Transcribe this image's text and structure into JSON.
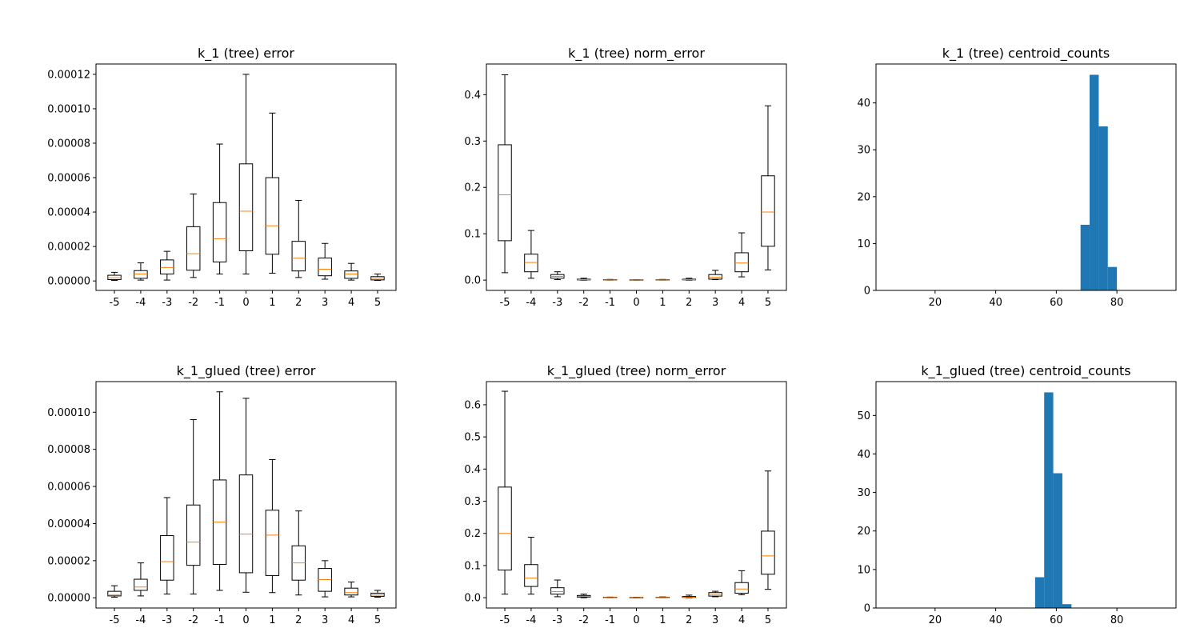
{
  "chart_data": [
    {
      "type": "box",
      "title": "k_1 (tree) error",
      "xlabel": "",
      "ylabel": "",
      "categories": [
        "-5",
        "-4",
        "-3",
        "-2",
        "-1",
        "0",
        "1",
        "2",
        "3",
        "4",
        "5"
      ],
      "ylim": [
        -5.5e-06,
        0.000126
      ],
      "yticks": [
        0,
        2e-05,
        4e-05,
        6e-05,
        8e-05,
        0.0001,
        0.00012
      ],
      "ytick_labels": [
        "0.00000",
        "0.00002",
        "0.00004",
        "0.00006",
        "0.00008",
        "0.00010",
        "0.00012"
      ],
      "boxes": [
        {
          "whislo": 3e-07,
          "q1": 8e-07,
          "med": 1.8e-06,
          "q3": 3.3e-06,
          "whishi": 5e-06
        },
        {
          "whislo": 5e-07,
          "q1": 1.5e-06,
          "med": 4e-06,
          "q3": 6e-06,
          "whishi": 1.05e-05
        },
        {
          "whislo": 5e-07,
          "q1": 4e-06,
          "med": 7.8e-06,
          "q3": 1.22e-05,
          "whishi": 1.72e-05
        },
        {
          "whislo": 2e-06,
          "q1": 6.2e-06,
          "med": 1.58e-05,
          "q3": 3.15e-05,
          "whishi": 5.05e-05
        },
        {
          "whislo": 4e-06,
          "q1": 1.1e-05,
          "med": 2.45e-05,
          "q3": 4.55e-05,
          "whishi": 7.95e-05
        },
        {
          "whislo": 4e-06,
          "q1": 1.75e-05,
          "med": 4.05e-05,
          "q3": 6.8e-05,
          "whishi": 0.00012
        },
        {
          "whislo": 4.5e-06,
          "q1": 1.55e-05,
          "med": 3.2e-05,
          "q3": 6e-05,
          "whishi": 9.75e-05
        },
        {
          "whislo": 2e-06,
          "q1": 5.8e-06,
          "med": 1.32e-05,
          "q3": 2.3e-05,
          "whishi": 4.68e-05
        },
        {
          "whislo": 1e-06,
          "q1": 3e-06,
          "med": 6.8e-06,
          "q3": 1.33e-05,
          "whishi": 2.18e-05
        },
        {
          "whislo": 5e-07,
          "q1": 1.5e-06,
          "med": 4e-06,
          "q3": 5.8e-06,
          "whishi": 1.02e-05
        },
        {
          "whislo": 3e-07,
          "q1": 6e-07,
          "med": 1.5e-06,
          "q3": 2.5e-06,
          "whishi": 4e-06
        }
      ]
    },
    {
      "type": "box",
      "title": "k_1 (tree) norm_error",
      "xlabel": "",
      "ylabel": "",
      "categories": [
        "-5",
        "-4",
        "-3",
        "-2",
        "-1",
        "0",
        "1",
        "2",
        "3",
        "4",
        "5"
      ],
      "ylim": [
        -0.0222,
        0.4662
      ],
      "yticks": [
        0,
        0.1,
        0.2,
        0.3,
        0.4
      ],
      "ytick_labels": [
        "0.0",
        "0.1",
        "0.2",
        "0.3",
        "0.4"
      ],
      "boxes": [
        {
          "whislo": 0.016,
          "q1": 0.085,
          "med": 0.184,
          "q3": 0.292,
          "whishi": 0.443
        },
        {
          "whislo": 0.004,
          "q1": 0.018,
          "med": 0.038,
          "q3": 0.056,
          "whishi": 0.107
        },
        {
          "whislo": 0.001,
          "q1": 0.004,
          "med": 0.008,
          "q3": 0.012,
          "whishi": 0.018
        },
        {
          "whislo": 0.0,
          "q1": 0.0005,
          "med": 0.001,
          "q3": 0.002,
          "whishi": 0.004
        },
        {
          "whislo": 0.0,
          "q1": 0.0002,
          "med": 0.0005,
          "q3": 0.001,
          "whishi": 0.0015
        },
        {
          "whislo": 0.0,
          "q1": 0.0002,
          "med": 0.0004,
          "q3": 0.0008,
          "whishi": 0.001
        },
        {
          "whislo": 0.0,
          "q1": 0.0002,
          "med": 0.0005,
          "q3": 0.001,
          "whishi": 0.0015
        },
        {
          "whislo": 0.0,
          "q1": 0.0006,
          "med": 0.001,
          "q3": 0.002,
          "whishi": 0.004
        },
        {
          "whislo": 0.001,
          "q1": 0.002,
          "med": 0.006,
          "q3": 0.012,
          "whishi": 0.021
        },
        {
          "whislo": 0.007,
          "q1": 0.018,
          "med": 0.037,
          "q3": 0.059,
          "whishi": 0.102
        },
        {
          "whislo": 0.022,
          "q1": 0.073,
          "med": 0.147,
          "q3": 0.225,
          "whishi": 0.376
        }
      ]
    },
    {
      "type": "histogram",
      "title": "k_1 (tree) centroid_counts",
      "xlabel": "",
      "ylabel": "",
      "xlim": [
        0.5,
        99.5
      ],
      "ylim": [
        0,
        48.3
      ],
      "xticks": [
        20,
        40,
        60,
        80
      ],
      "xtick_labels": [
        "20",
        "40",
        "60",
        "80"
      ],
      "yticks": [
        0,
        10,
        20,
        30,
        40
      ],
      "ytick_labels": [
        "0",
        "10",
        "20",
        "30",
        "40"
      ],
      "bins": [
        {
          "x0": 68,
          "x1": 71,
          "count": 14
        },
        {
          "x0": 71,
          "x1": 74,
          "count": 46
        },
        {
          "x0": 74,
          "x1": 77,
          "count": 35
        },
        {
          "x0": 77,
          "x1": 80,
          "count": 5
        }
      ]
    },
    {
      "type": "box",
      "title": "k_1_glued (tree) error",
      "xlabel": "",
      "ylabel": "",
      "categories": [
        "-5",
        "-4",
        "-3",
        "-2",
        "-1",
        "0",
        "1",
        "2",
        "3",
        "4",
        "5"
      ],
      "ylim": [
        -5.5e-06,
        0.0001165
      ],
      "yticks": [
        0,
        2e-05,
        4e-05,
        6e-05,
        8e-05,
        0.0001
      ],
      "ytick_labels": [
        "0.00000",
        "0.00002",
        "0.00004",
        "0.00006",
        "0.00008",
        "0.00010"
      ],
      "boxes": [
        {
          "whislo": 3e-07,
          "q1": 1e-06,
          "med": 1.5e-06,
          "q3": 3.5e-06,
          "whishi": 6.5e-06
        },
        {
          "whislo": 1e-06,
          "q1": 4e-06,
          "med": 5.8e-06,
          "q3": 1e-05,
          "whishi": 1.88e-05
        },
        {
          "whislo": 2e-06,
          "q1": 9.5e-06,
          "med": 1.95e-05,
          "q3": 3.35e-05,
          "whishi": 5.4e-05
        },
        {
          "whislo": 2e-06,
          "q1": 1.75e-05,
          "med": 3e-05,
          "q3": 5e-05,
          "whishi": 9.6e-05
        },
        {
          "whislo": 4e-06,
          "q1": 1.8e-05,
          "med": 4.08e-05,
          "q3": 6.35e-05,
          "whishi": 0.000111
        },
        {
          "whislo": 3e-06,
          "q1": 1.35e-05,
          "med": 3.43e-05,
          "q3": 6.62e-05,
          "whishi": 0.0001075
        },
        {
          "whislo": 2.8e-06,
          "q1": 1.2e-05,
          "med": 3.38e-05,
          "q3": 4.72e-05,
          "whishi": 7.45e-05
        },
        {
          "whislo": 1.5e-06,
          "q1": 9.5e-06,
          "med": 1.88e-05,
          "q3": 2.8e-05,
          "whishi": 4.68e-05
        },
        {
          "whislo": 5e-07,
          "q1": 3.5e-06,
          "med": 9.8e-06,
          "q3": 1.58e-05,
          "whishi": 2e-05
        },
        {
          "whislo": 5e-07,
          "q1": 1.5e-06,
          "med": 2.8e-06,
          "q3": 5.2e-06,
          "whishi": 8.5e-06
        },
        {
          "whislo": 3e-07,
          "q1": 8e-07,
          "med": 1.5e-06,
          "q3": 2.5e-06,
          "whishi": 4e-06
        }
      ]
    },
    {
      "type": "box",
      "title": "k_1_glued (tree) norm_error",
      "xlabel": "",
      "ylabel": "",
      "categories": [
        "-5",
        "-4",
        "-3",
        "-2",
        "-1",
        "0",
        "1",
        "2",
        "3",
        "4",
        "5"
      ],
      "ylim": [
        -0.032,
        0.672
      ],
      "yticks": [
        0,
        0.1,
        0.2,
        0.3,
        0.4,
        0.5,
        0.6
      ],
      "ytick_labels": [
        "0.0",
        "0.1",
        "0.2",
        "0.3",
        "0.4",
        "0.5",
        "0.6"
      ],
      "boxes": [
        {
          "whislo": 0.011,
          "q1": 0.086,
          "med": 0.2,
          "q3": 0.344,
          "whishi": 0.642
        },
        {
          "whislo": 0.011,
          "q1": 0.035,
          "med": 0.061,
          "q3": 0.103,
          "whishi": 0.188
        },
        {
          "whislo": 0.003,
          "q1": 0.011,
          "med": 0.019,
          "q3": 0.031,
          "whishi": 0.055
        },
        {
          "whislo": 0.0,
          "q1": 0.002,
          "med": 0.004,
          "q3": 0.007,
          "whishi": 0.011
        },
        {
          "whislo": 0.0,
          "q1": 0.0004,
          "med": 0.0008,
          "q3": 0.0015,
          "whishi": 0.002
        },
        {
          "whislo": 0.0,
          "q1": 0.0003,
          "med": 0.0006,
          "q3": 0.001,
          "whishi": 0.0015
        },
        {
          "whislo": 0.0,
          "q1": 0.0004,
          "med": 0.0008,
          "q3": 0.0015,
          "whishi": 0.0025
        },
        {
          "whislo": 0.0,
          "q1": 0.001,
          "med": 0.002,
          "q3": 0.004,
          "whishi": 0.008
        },
        {
          "whislo": 0.003,
          "q1": 0.005,
          "med": 0.01,
          "q3": 0.016,
          "whishi": 0.02
        },
        {
          "whislo": 0.009,
          "q1": 0.014,
          "med": 0.027,
          "q3": 0.047,
          "whishi": 0.084
        },
        {
          "whislo": 0.026,
          "q1": 0.073,
          "med": 0.13,
          "q3": 0.207,
          "whishi": 0.394
        }
      ]
    },
    {
      "type": "histogram",
      "title": "k_1_glued (tree) centroid_counts",
      "xlabel": "",
      "ylabel": "",
      "xlim": [
        0.5,
        99.5
      ],
      "ylim": [
        0,
        58.8
      ],
      "xticks": [
        20,
        40,
        60,
        80
      ],
      "xtick_labels": [
        "20",
        "40",
        "60",
        "80"
      ],
      "yticks": [
        0,
        10,
        20,
        30,
        40,
        50
      ],
      "ytick_labels": [
        "0",
        "10",
        "20",
        "30",
        "40",
        "50"
      ],
      "bins": [
        {
          "x0": 53,
          "x1": 56,
          "count": 8
        },
        {
          "x0": 56,
          "x1": 59,
          "count": 56
        },
        {
          "x0": 59,
          "x1": 62,
          "count": 35
        },
        {
          "x0": 62,
          "x1": 65,
          "count": 1
        }
      ]
    }
  ],
  "colors": {
    "median": "#ff7f0e",
    "box": "#000000",
    "hist": "#1f77b4",
    "background": "#ffffff"
  }
}
